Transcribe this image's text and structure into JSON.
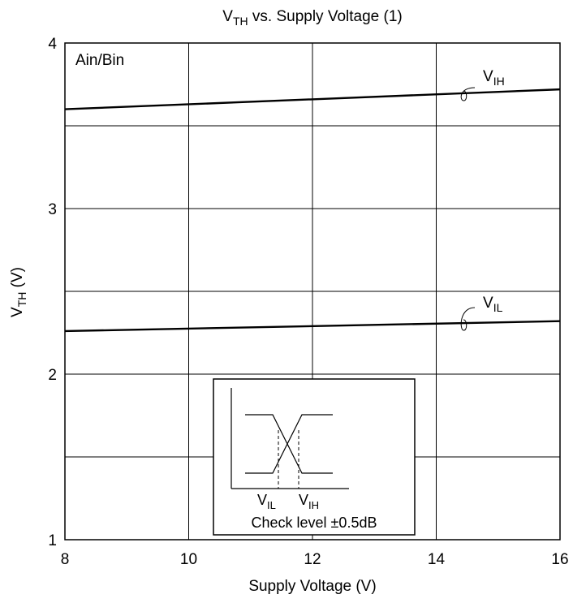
{
  "chart_data": {
    "type": "line",
    "title": "V",
    "title_sub": "TH",
    "title_rest": " vs. Supply Voltage (1)",
    "xlabel": "Supply Voltage  (V)",
    "ylabel": "V",
    "ylabel_sub": "TH",
    "ylabel_rest": "  (V)",
    "xlim": [
      8,
      16
    ],
    "ylim": [
      1,
      4
    ],
    "x_ticks": [
      8,
      10,
      12,
      14,
      16
    ],
    "y_ticks": [
      1,
      2,
      3,
      4
    ],
    "x_tick_labels": [
      "8",
      "10",
      "12",
      "14",
      "16"
    ],
    "y_tick_labels": [
      "1",
      "2",
      "3",
      "4"
    ],
    "grid": true,
    "corner_label": "Ain/Bin",
    "series": [
      {
        "name": "V",
        "sub": "IH",
        "x": [
          8,
          16
        ],
        "y": [
          3.6,
          3.72
        ],
        "label_at": [
          14.5,
          3.7
        ]
      },
      {
        "name": "V",
        "sub": "IL",
        "x": [
          8,
          16
        ],
        "y": [
          2.26,
          2.32
        ],
        "label_at": [
          14.5,
          2.3
        ]
      }
    ],
    "inset": {
      "label_il": "V",
      "label_il_sub": "IL",
      "label_ih": "V",
      "label_ih_sub": "IH",
      "caption": "Check level ±0.5dB"
    }
  }
}
